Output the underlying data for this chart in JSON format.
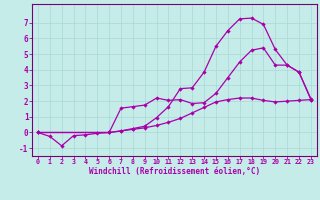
{
  "xlabel": "Windchill (Refroidissement éolien,°C)",
  "background_color": "#c5ece8",
  "grid_color": "#a8d8d4",
  "line_color": "#aa00aa",
  "spine_color": "#770077",
  "xlim": [
    -0.5,
    23.5
  ],
  "ylim": [
    -1.5,
    8.2
  ],
  "xticks": [
    0,
    1,
    2,
    3,
    4,
    5,
    6,
    7,
    8,
    9,
    10,
    11,
    12,
    13,
    14,
    15,
    16,
    17,
    18,
    19,
    20,
    21,
    22,
    23
  ],
  "yticks": [
    -1,
    0,
    1,
    2,
    3,
    4,
    5,
    6,
    7
  ],
  "curve1_x": [
    0,
    1,
    2,
    3,
    4,
    5,
    6,
    7,
    8,
    9,
    10,
    11,
    12,
    13,
    14,
    15,
    16,
    17,
    18,
    19,
    20,
    21,
    22,
    23
  ],
  "curve1_y": [
    0.0,
    -0.25,
    -0.85,
    -0.2,
    -0.15,
    -0.05,
    0.0,
    0.1,
    0.2,
    0.3,
    0.45,
    0.65,
    0.9,
    1.25,
    1.6,
    1.95,
    2.1,
    2.2,
    2.2,
    2.05,
    1.95,
    2.0,
    2.05,
    2.1
  ],
  "curve2_x": [
    0,
    6,
    7,
    8,
    9,
    10,
    11,
    12,
    13,
    14,
    15,
    16,
    17,
    18,
    19,
    20,
    21,
    22,
    23
  ],
  "curve2_y": [
    0.0,
    0.0,
    0.1,
    0.25,
    0.4,
    0.95,
    1.65,
    2.8,
    2.85,
    3.85,
    5.5,
    6.5,
    7.25,
    7.3,
    6.9,
    5.3,
    4.3,
    3.85,
    2.15
  ],
  "curve3_x": [
    0,
    6,
    7,
    8,
    9,
    10,
    11,
    12,
    13,
    14,
    15,
    16,
    17,
    18,
    19,
    20,
    21,
    22,
    23
  ],
  "curve3_y": [
    0.0,
    0.0,
    1.55,
    1.65,
    1.75,
    2.2,
    2.05,
    2.1,
    1.85,
    1.9,
    2.5,
    3.5,
    4.5,
    5.25,
    5.4,
    4.3,
    4.3,
    3.85,
    2.1
  ]
}
